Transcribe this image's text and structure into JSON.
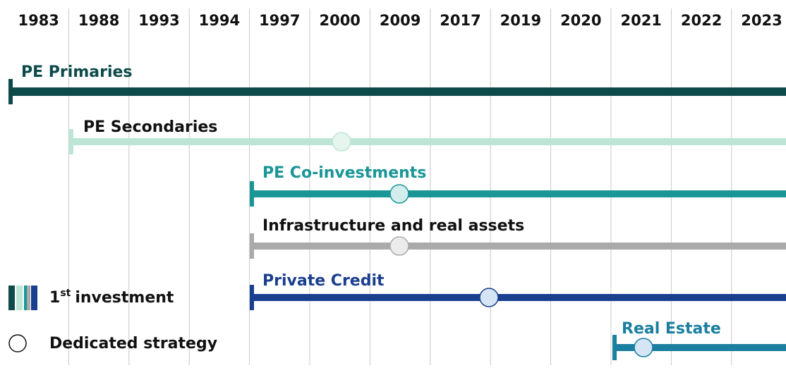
{
  "timeline": {
    "years": [
      "1983",
      "1988",
      "1993",
      "1994",
      "1997",
      "2000",
      "2009",
      "2017",
      "2019",
      "2020",
      "2021",
      "2022",
      "2023"
    ],
    "lanes": [
      {
        "label": "PE Primaries"
      },
      {
        "label": "PE Secondaries"
      },
      {
        "label": "PE Co-investments"
      },
      {
        "label": "Infrastructure and real assets"
      },
      {
        "label": "Private Credit"
      },
      {
        "label": "Real Estate"
      }
    ],
    "legend": {
      "first_investment": {
        "number": "1",
        "suffix": "st",
        "text": "investment"
      },
      "dedicated_strategy": "Dedicated strategy"
    }
  }
}
